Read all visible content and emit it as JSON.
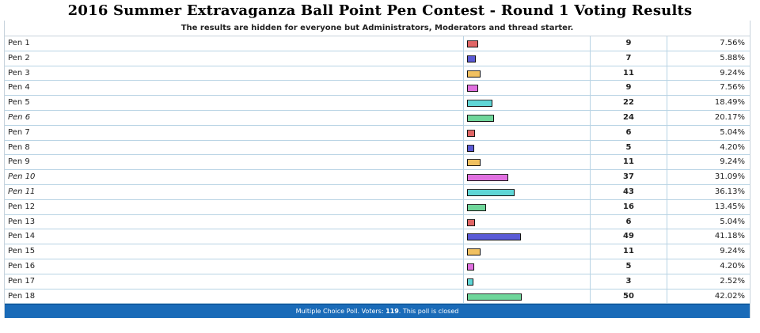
{
  "title": "2016 Summer Extravaganza Ball Point Pen Contest - Round 1 Voting Results",
  "notice": "The results are hidden for everyone but Administrators, Moderators and thread starter.",
  "colors": {
    "bar_red": "#e06666",
    "bar_blue": "#5b5bd6",
    "bar_orange": "#f0c060",
    "bar_pink": "#e070e0",
    "bar_cyan": "#5fd6d6",
    "bar_green": "#6fd69a",
    "footer_bg": "#1a6bb8"
  },
  "options": [
    {
      "label": "Pen 1",
      "votes": "9",
      "percent": "7.56%",
      "fraction": 0.0756,
      "color": "bar_red",
      "italic": false
    },
    {
      "label": "Pen 2",
      "votes": "7",
      "percent": "5.88%",
      "fraction": 0.0588,
      "color": "bar_blue",
      "italic": false
    },
    {
      "label": "Pen 3",
      "votes": "11",
      "percent": "9.24%",
      "fraction": 0.0924,
      "color": "bar_orange",
      "italic": false
    },
    {
      "label": "Pen 4",
      "votes": "9",
      "percent": "7.56%",
      "fraction": 0.0756,
      "color": "bar_pink",
      "italic": false
    },
    {
      "label": "Pen 5",
      "votes": "22",
      "percent": "18.49%",
      "fraction": 0.1849,
      "color": "bar_cyan",
      "italic": false
    },
    {
      "label": "Pen 6",
      "votes": "24",
      "percent": "20.17%",
      "fraction": 0.2017,
      "color": "bar_green",
      "italic": true
    },
    {
      "label": "Pen 7",
      "votes": "6",
      "percent": "5.04%",
      "fraction": 0.0504,
      "color": "bar_red",
      "italic": false
    },
    {
      "label": "Pen 8",
      "votes": "5",
      "percent": "4.20%",
      "fraction": 0.042,
      "color": "bar_blue",
      "italic": false
    },
    {
      "label": "Pen 9",
      "votes": "11",
      "percent": "9.24%",
      "fraction": 0.0924,
      "color": "bar_orange",
      "italic": false
    },
    {
      "label": "Pen 10",
      "votes": "37",
      "percent": "31.09%",
      "fraction": 0.3109,
      "color": "bar_pink",
      "italic": true
    },
    {
      "label": "Pen 11",
      "votes": "43",
      "percent": "36.13%",
      "fraction": 0.3613,
      "color": "bar_cyan",
      "italic": true
    },
    {
      "label": "Pen 12",
      "votes": "16",
      "percent": "13.45%",
      "fraction": 0.1345,
      "color": "bar_green",
      "italic": false
    },
    {
      "label": "Pen 13",
      "votes": "6",
      "percent": "5.04%",
      "fraction": 0.0504,
      "color": "bar_red",
      "italic": false
    },
    {
      "label": "Pen 14",
      "votes": "49",
      "percent": "41.18%",
      "fraction": 0.4118,
      "color": "bar_blue",
      "italic": false
    },
    {
      "label": "Pen 15",
      "votes": "11",
      "percent": "9.24%",
      "fraction": 0.0924,
      "color": "bar_orange",
      "italic": false
    },
    {
      "label": "Pen 16",
      "votes": "5",
      "percent": "4.20%",
      "fraction": 0.042,
      "color": "bar_pink",
      "italic": false
    },
    {
      "label": "Pen 17",
      "votes": "3",
      "percent": "2.52%",
      "fraction": 0.0252,
      "color": "bar_cyan",
      "italic": false
    },
    {
      "label": "Pen 18",
      "votes": "50",
      "percent": "42.02%",
      "fraction": 0.4202,
      "color": "bar_green",
      "italic": false
    }
  ],
  "footer": {
    "prefix": "Multiple Choice Poll. Voters: ",
    "voters": "119",
    "suffix": ". This poll is closed"
  }
}
